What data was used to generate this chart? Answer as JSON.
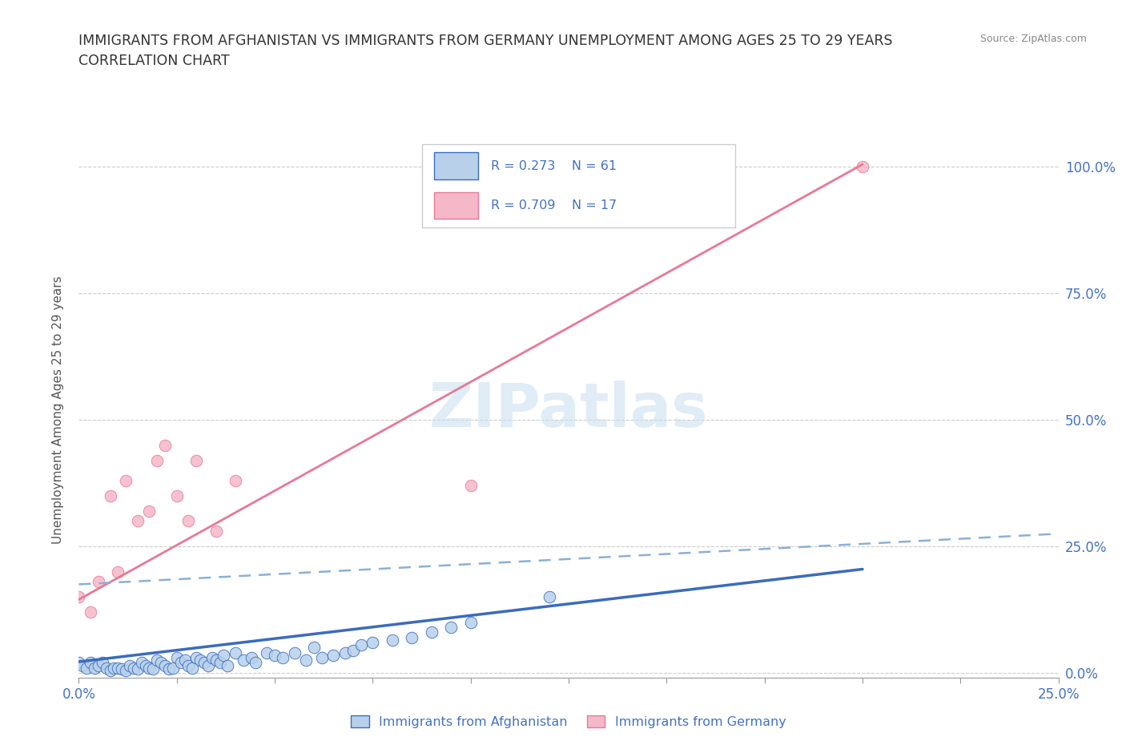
{
  "title_line1": "IMMIGRANTS FROM AFGHANISTAN VS IMMIGRANTS FROM GERMANY UNEMPLOYMENT AMONG AGES 25 TO 29 YEARS",
  "title_line2": "CORRELATION CHART",
  "source_text": "Source: ZipAtlas.com",
  "ylabel": "Unemployment Among Ages 25 to 29 years",
  "xlim": [
    0.0,
    0.25
  ],
  "ylim": [
    -0.01,
    1.05
  ],
  "legend_r1": "R = 0.273",
  "legend_n1": "N = 61",
  "legend_r2": "R = 0.709",
  "legend_n2": "N = 17",
  "color_afghanistan": "#b8d0ea",
  "color_germany": "#f5b8c8",
  "line_color_afghanistan": "#3a6bbf",
  "line_color_germany": "#e87898",
  "dashed_line_color": "#8ab0d8",
  "watermark_color": "#cce0f0",
  "afghanistan_scatter_x": [
    0.0,
    0.001,
    0.002,
    0.003,
    0.004,
    0.005,
    0.006,
    0.007,
    0.008,
    0.009,
    0.01,
    0.011,
    0.012,
    0.013,
    0.014,
    0.015,
    0.016,
    0.017,
    0.018,
    0.019,
    0.02,
    0.021,
    0.022,
    0.023,
    0.024,
    0.025,
    0.026,
    0.027,
    0.028,
    0.029,
    0.03,
    0.031,
    0.032,
    0.033,
    0.034,
    0.035,
    0.036,
    0.037,
    0.038,
    0.04,
    0.042,
    0.044,
    0.045,
    0.048,
    0.05,
    0.052,
    0.055,
    0.058,
    0.06,
    0.062,
    0.065,
    0.068,
    0.07,
    0.072,
    0.075,
    0.08,
    0.085,
    0.09,
    0.095,
    0.1,
    0.12
  ],
  "afghanistan_scatter_y": [
    0.02,
    0.015,
    0.01,
    0.02,
    0.01,
    0.015,
    0.02,
    0.01,
    0.005,
    0.01,
    0.01,
    0.008,
    0.005,
    0.015,
    0.01,
    0.008,
    0.02,
    0.015,
    0.01,
    0.008,
    0.025,
    0.02,
    0.015,
    0.008,
    0.01,
    0.03,
    0.02,
    0.025,
    0.015,
    0.01,
    0.03,
    0.025,
    0.02,
    0.015,
    0.03,
    0.025,
    0.02,
    0.035,
    0.015,
    0.04,
    0.025,
    0.03,
    0.02,
    0.04,
    0.035,
    0.03,
    0.04,
    0.025,
    0.05,
    0.03,
    0.035,
    0.04,
    0.045,
    0.055,
    0.06,
    0.065,
    0.07,
    0.08,
    0.09,
    0.1,
    0.15
  ],
  "germany_scatter_x": [
    0.0,
    0.003,
    0.005,
    0.008,
    0.01,
    0.012,
    0.015,
    0.018,
    0.02,
    0.022,
    0.025,
    0.028,
    0.03,
    0.035,
    0.04,
    0.1,
    0.2
  ],
  "germany_scatter_y": [
    0.15,
    0.12,
    0.18,
    0.35,
    0.2,
    0.38,
    0.3,
    0.32,
    0.42,
    0.45,
    0.35,
    0.3,
    0.42,
    0.28,
    0.38,
    0.37,
    1.0
  ],
  "afg_line_x0": 0.0,
  "afg_line_y0": 0.022,
  "afg_line_x1": 0.2,
  "afg_line_y1": 0.205,
  "ger_line_x0": 0.0,
  "ger_line_y0": 0.145,
  "ger_line_x1": 0.2,
  "ger_line_y1": 1.005,
  "dash_line_x0": 0.0,
  "dash_line_y0": 0.175,
  "dash_line_x1": 0.25,
  "dash_line_y1": 0.275
}
